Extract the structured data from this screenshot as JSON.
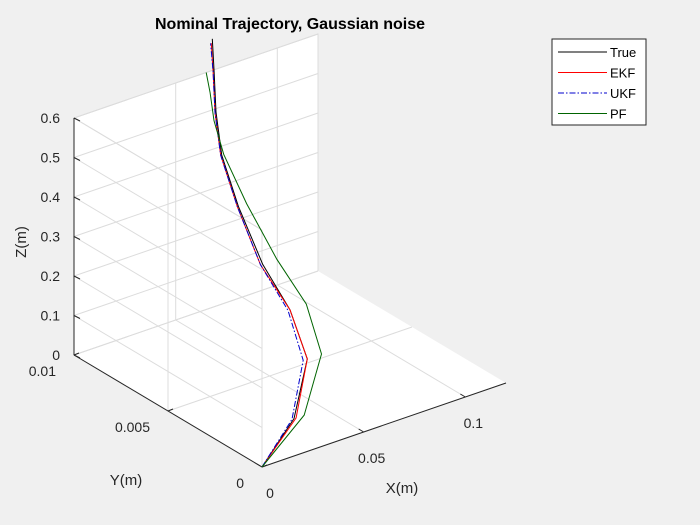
{
  "chart_data": {
    "type": "line",
    "projection": "3d",
    "title": "Nominal Trajectory, Gaussian noise",
    "xlabel": "X(m)",
    "ylabel": "Y(m)",
    "zlabel": "Z(m)",
    "xlim": [
      0,
      0.12
    ],
    "ylim": [
      0,
      0.01
    ],
    "zlim": [
      0,
      0.6
    ],
    "x_ticks": [
      "0",
      "0.05",
      "0.1"
    ],
    "y_ticks": [
      "0",
      "0.005",
      "0.01"
    ],
    "z_ticks": [
      "0",
      "0.1",
      "0.2",
      "0.3",
      "0.4",
      "0.5",
      "0.6"
    ],
    "grid": true,
    "legend_position": "top-right",
    "series": [
      {
        "name": "True",
        "color": "#000000",
        "style": "solid",
        "x": [
          0,
          0.025,
          0.05,
          0.06,
          0.065,
          0.067,
          0.068,
          0.068,
          0.068,
          0.068
        ],
        "y": [
          0,
          0.001,
          0.003,
          0.005,
          0.007,
          0.0085,
          0.0095,
          0.0098,
          0.0099,
          0.01
        ],
        "z": [
          0,
          0.05,
          0.1,
          0.15,
          0.2,
          0.3,
          0.4,
          0.5,
          0.6,
          0.68
        ]
      },
      {
        "name": "EKF",
        "color": "#ff0000",
        "style": "solid",
        "x": [
          0,
          0.026,
          0.05,
          0.06,
          0.064,
          0.0665,
          0.0675,
          0.0675,
          0.0675,
          0.0675
        ],
        "y": [
          0,
          0.001,
          0.003,
          0.005,
          0.007,
          0.0085,
          0.0095,
          0.0098,
          0.0099,
          0.01
        ],
        "z": [
          0,
          0.05,
          0.1,
          0.15,
          0.2,
          0.3,
          0.4,
          0.5,
          0.6,
          0.67
        ]
      },
      {
        "name": "UKF",
        "color": "#0000cc",
        "style": "dashdot",
        "x": [
          0,
          0.024,
          0.048,
          0.059,
          0.064,
          0.0665,
          0.0675,
          0.0675,
          0.0675,
          0.0672
        ],
        "y": [
          0,
          0.001,
          0.003,
          0.005,
          0.007,
          0.0085,
          0.0095,
          0.0098,
          0.0099,
          0.01
        ],
        "z": [
          0,
          0.05,
          0.1,
          0.15,
          0.2,
          0.3,
          0.4,
          0.5,
          0.6,
          0.67
        ]
      },
      {
        "name": "PF",
        "color": "#006400",
        "style": "solid",
        "x": [
          0,
          0.03,
          0.057,
          0.068,
          0.072,
          0.071,
          0.069,
          0.067,
          0.066,
          0.065
        ],
        "y": [
          0,
          0.001,
          0.003,
          0.005,
          0.007,
          0.0085,
          0.0095,
          0.0098,
          0.0099,
          0.01
        ],
        "z": [
          0,
          0.05,
          0.1,
          0.15,
          0.2,
          0.3,
          0.4,
          0.48,
          0.55,
          0.6
        ]
      }
    ]
  }
}
